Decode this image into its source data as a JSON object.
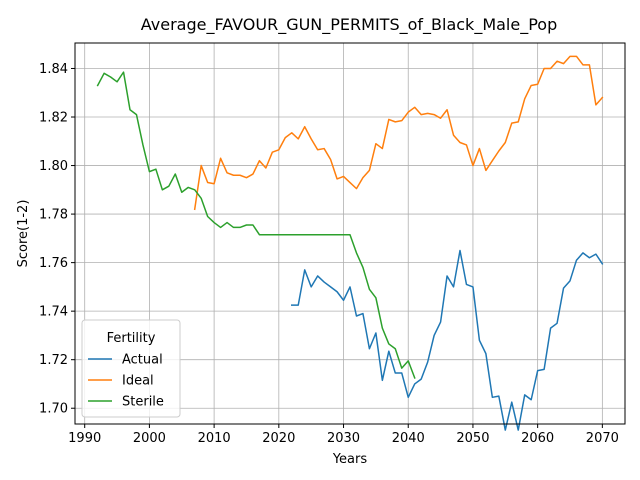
{
  "chart_data": {
    "type": "line",
    "title": "Average_FAVOUR_GUN_PERMITS_of_Black_Male_Pop",
    "xlabel": "Years",
    "ylabel": "Score(1-2)",
    "xlim": [
      1988.5,
      2073.5
    ],
    "ylim": [
      1.6935,
      1.8505
    ],
    "xticks": [
      1990,
      2000,
      2010,
      2020,
      2030,
      2040,
      2050,
      2060,
      2070
    ],
    "yticks": [
      1.7,
      1.72,
      1.74,
      1.76,
      1.78,
      1.8,
      1.82,
      1.84
    ],
    "ytick_labels": [
      "1.70",
      "1.72",
      "1.74",
      "1.76",
      "1.78",
      "1.80",
      "1.82",
      "1.84"
    ],
    "grid": true,
    "legend": {
      "title": "Fertility",
      "position": "lower-left"
    },
    "series": [
      {
        "name": "Actual",
        "color": "#1f77b4",
        "x": [
          2022,
          2023,
          2024,
          2025,
          2026,
          2027,
          2028,
          2029,
          2030,
          2031,
          2032,
          2033,
          2034,
          2035,
          2036,
          2037,
          2038,
          2039,
          2040,
          2041,
          2042,
          2043,
          2044,
          2045,
          2046,
          2047,
          2048,
          2049,
          2050,
          2051,
          2052,
          2053,
          2054,
          2055,
          2056,
          2057,
          2058,
          2059,
          2060,
          2061,
          2062,
          2063,
          2064,
          2065,
          2066,
          2067,
          2068,
          2069,
          2070
        ],
        "y": [
          1.7425,
          1.7425,
          1.757,
          1.75,
          1.7545,
          1.752,
          1.75,
          1.748,
          1.7445,
          1.75,
          1.738,
          1.739,
          1.7245,
          1.731,
          1.7115,
          1.7235,
          1.7145,
          1.7145,
          1.7045,
          1.71,
          1.712,
          1.719,
          1.73,
          1.7355,
          1.7545,
          1.75,
          1.765,
          1.751,
          1.75,
          1.728,
          1.7225,
          1.7045,
          1.705,
          1.691,
          1.7025,
          1.691,
          1.7055,
          1.7035,
          1.7155,
          1.716,
          1.733,
          1.735,
          1.7495,
          1.7525,
          1.761,
          1.764,
          1.762,
          1.7635,
          1.7595
        ]
      },
      {
        "name": "Ideal",
        "color": "#ff7f0e",
        "x": [
          2007,
          2008,
          2009,
          2010,
          2011,
          2012,
          2013,
          2014,
          2015,
          2016,
          2017,
          2018,
          2019,
          2020,
          2021,
          2022,
          2023,
          2024,
          2025,
          2026,
          2027,
          2028,
          2029,
          2030,
          2031,
          2032,
          2033,
          2034,
          2035,
          2036,
          2037,
          2038,
          2039,
          2040,
          2041,
          2042,
          2043,
          2044,
          2045,
          2046,
          2047,
          2048,
          2049,
          2050,
          2051,
          2052,
          2053,
          2054,
          2055,
          2056,
          2057,
          2058,
          2059,
          2060,
          2061,
          2062,
          2063,
          2064,
          2065,
          2066,
          2067,
          2068,
          2069,
          2070
        ],
        "y": [
          1.782,
          1.8,
          1.793,
          1.7925,
          1.803,
          1.797,
          1.796,
          1.796,
          1.795,
          1.7965,
          1.802,
          1.799,
          1.8055,
          1.8065,
          1.8115,
          1.8135,
          1.811,
          1.816,
          1.811,
          1.8065,
          1.807,
          1.8025,
          1.7945,
          1.7955,
          1.793,
          1.7905,
          1.795,
          1.798,
          1.809,
          1.807,
          1.819,
          1.818,
          1.8185,
          1.822,
          1.824,
          1.821,
          1.8215,
          1.821,
          1.8195,
          1.823,
          1.8125,
          1.8095,
          1.8085,
          1.8,
          1.807,
          1.798,
          1.802,
          1.806,
          1.8095,
          1.8175,
          1.818,
          1.8275,
          1.833,
          1.8335,
          1.84,
          1.84,
          1.843,
          1.842,
          1.845,
          1.845,
          1.8415,
          1.8415,
          1.825,
          1.828
        ]
      },
      {
        "name": "Sterile",
        "color": "#2ca02c",
        "x": [
          1992,
          1993,
          1994,
          1995,
          1996,
          1997,
          1998,
          1999,
          2000,
          2001,
          2002,
          2003,
          2004,
          2005,
          2006,
          2007,
          2008,
          2009,
          2010,
          2011,
          2012,
          2013,
          2014,
          2015,
          2016,
          2017,
          2018,
          2019,
          2020,
          2021,
          2022,
          2023,
          2024,
          2025,
          2026,
          2027,
          2028,
          2029,
          2030,
          2031,
          2032,
          2033,
          2034,
          2035,
          2036,
          2037,
          2038,
          2039,
          2040,
          2041
        ],
        "y": [
          1.833,
          1.838,
          1.8365,
          1.8345,
          1.8385,
          1.823,
          1.821,
          1.8085,
          1.7975,
          1.7985,
          1.79,
          1.7915,
          1.7965,
          1.789,
          1.791,
          1.79,
          1.7865,
          1.779,
          1.7765,
          1.7745,
          1.7765,
          1.7745,
          1.7745,
          1.7755,
          1.7755,
          1.7715,
          1.7715,
          1.7715,
          1.7715,
          1.7715,
          1.7715,
          1.7715,
          1.7715,
          1.7715,
          1.7715,
          1.7715,
          1.7715,
          1.7715,
          1.7715,
          1.7715,
          1.764,
          1.758,
          1.749,
          1.7455,
          1.733,
          1.7265,
          1.7245,
          1.7165,
          1.7195,
          1.7125
        ]
      }
    ]
  }
}
